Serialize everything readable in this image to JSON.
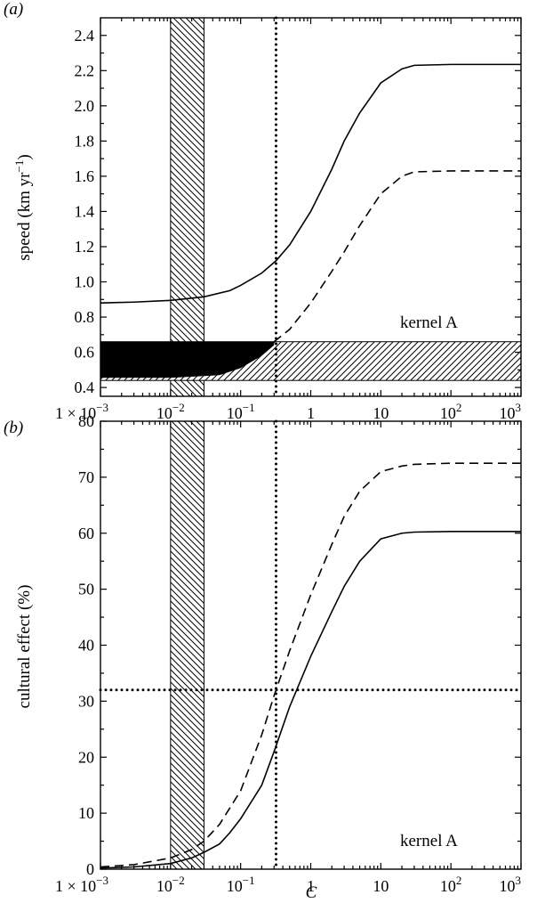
{
  "chart_data": [
    {
      "panel": "(a)",
      "type": "line",
      "ylabel_main": "speed (km yr",
      "ylabel_sup": "−1",
      "ylabel_end": ")",
      "xscale": "log",
      "xlim": [
        0.001,
        1000
      ],
      "ylim": [
        0.35,
        2.5
      ],
      "x_ticks": [
        {
          "value": 0.001,
          "base": "1 × 10",
          "exp": "−3"
        },
        {
          "value": 0.01,
          "base": "10",
          "exp": "−2"
        },
        {
          "value": 0.1,
          "base": "10",
          "exp": "−1"
        },
        {
          "value": 1,
          "base": "1",
          "exp": ""
        },
        {
          "value": 10,
          "base": "10",
          "exp": ""
        },
        {
          "value": 100,
          "base": "10",
          "exp": "2"
        },
        {
          "value": 1000,
          "base": "10",
          "exp": "3"
        }
      ],
      "y_ticks": [
        "0.4",
        "0.6",
        "0.8",
        "1.0",
        "1.2",
        "1.4",
        "1.6",
        "1.8",
        "2.0",
        "2.2",
        "2.4"
      ],
      "annotation": "kernel A",
      "series": [
        {
          "style": "solid",
          "x": [
            0.001,
            0.003,
            0.01,
            0.03,
            0.07,
            0.1,
            0.2,
            0.32,
            0.5,
            1,
            2,
            3,
            5,
            10,
            20,
            30,
            100,
            1000
          ],
          "y": [
            0.88,
            0.885,
            0.895,
            0.915,
            0.95,
            0.98,
            1.05,
            1.12,
            1.21,
            1.4,
            1.64,
            1.8,
            1.96,
            2.13,
            2.21,
            2.23,
            2.235,
            2.235
          ]
        },
        {
          "style": "dashed",
          "x": [
            0.3,
            0.5,
            1,
            2,
            3,
            5,
            10,
            20,
            30,
            100,
            1000
          ],
          "y": [
            0.66,
            0.73,
            0.88,
            1.06,
            1.17,
            1.32,
            1.5,
            1.6,
            1.625,
            1.63,
            1.63
          ]
        }
      ],
      "vertical_dotted_x": 0.32,
      "vertical_band_x": [
        0.01,
        0.03
      ],
      "horizontal_band_y": [
        0.44,
        0.66
      ],
      "filled_region": {
        "x": [
          0.001,
          0.003,
          0.01,
          0.03,
          0.05,
          0.1,
          0.2,
          0.3
        ],
        "y_lower": [
          0.455,
          0.455,
          0.455,
          0.465,
          0.47,
          0.51,
          0.58,
          0.64
        ],
        "y_upper": 0.66
      }
    },
    {
      "panel": "(b)",
      "type": "line",
      "ylabel": "cultural effect (%)",
      "xlabel": "C",
      "xscale": "log",
      "xlim": [
        0.001,
        1000
      ],
      "ylim": [
        0,
        80
      ],
      "x_ticks": [
        {
          "value": 0.001,
          "base": "1 × 10",
          "exp": "−3"
        },
        {
          "value": 0.01,
          "base": "10",
          "exp": "−2"
        },
        {
          "value": 0.1,
          "base": "10",
          "exp": "−1"
        },
        {
          "value": 1,
          "base": "1",
          "exp": ""
        },
        {
          "value": 10,
          "base": "10",
          "exp": ""
        },
        {
          "value": 100,
          "base": "10",
          "exp": "2"
        },
        {
          "value": 1000,
          "base": "10",
          "exp": "3"
        }
      ],
      "y_ticks": [
        "0",
        "10",
        "20",
        "30",
        "40",
        "50",
        "60",
        "70",
        "80"
      ],
      "annotation": "kernel A",
      "series": [
        {
          "style": "solid",
          "x": [
            0.001,
            0.003,
            0.01,
            0.02,
            0.03,
            0.05,
            0.07,
            0.1,
            0.2,
            0.3,
            0.5,
            1,
            2,
            3,
            5,
            10,
            20,
            30,
            100,
            1000
          ],
          "y": [
            0.2,
            0.4,
            1.0,
            2.0,
            3.0,
            4.5,
            6.5,
            9.0,
            15.0,
            21.0,
            29.0,
            38.0,
            46.0,
            50.5,
            55.0,
            59.0,
            60.0,
            60.2,
            60.3,
            60.3
          ]
        },
        {
          "style": "dashed",
          "x": [
            0.001,
            0.003,
            0.01,
            0.02,
            0.03,
            0.05,
            0.1,
            0.2,
            0.3,
            0.5,
            1,
            2,
            3,
            5,
            10,
            20,
            30,
            100,
            1000
          ],
          "y": [
            0.4,
            0.8,
            2.0,
            3.5,
            5.0,
            8.0,
            14.0,
            24.0,
            31.0,
            39.0,
            49.0,
            58.0,
            63.0,
            67.5,
            71.0,
            72.0,
            72.3,
            72.5,
            72.5
          ]
        }
      ],
      "vertical_dotted_x": 0.32,
      "horizontal_dotted_y": 32,
      "vertical_band_x": [
        0.01,
        0.03
      ]
    }
  ]
}
